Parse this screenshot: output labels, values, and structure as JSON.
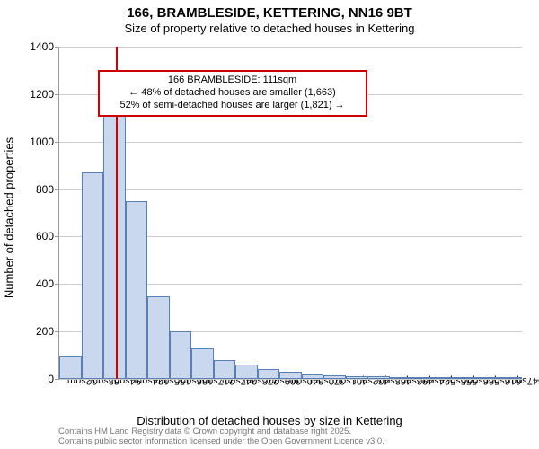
{
  "title": "166, BRAMBLESIDE, KETTERING, NN16 9BT",
  "subtitle": "Size of property relative to detached houses in Kettering",
  "ylabel": "Number of detached properties",
  "xlabel": "Distribution of detached houses by size in Kettering",
  "footer_line1": "Contains HM Land Registry data © Crown copyright and database right 2025.",
  "footer_line2": "Contains public sector information licensed under the Open Government Licence v3.0.",
  "chart": {
    "type": "histogram",
    "ylim": [
      0,
      1400
    ],
    "ytick_step": 200,
    "yticks": [
      0,
      200,
      400,
      600,
      800,
      1000,
      1200,
      1400
    ],
    "xticks": [
      "32sqm",
      "63sqm",
      "94sqm",
      "124sqm",
      "155sqm",
      "186sqm",
      "217sqm",
      "247sqm",
      "278sqm",
      "309sqm",
      "340sqm",
      "370sqm",
      "401sqm",
      "432sqm",
      "463sqm",
      "493sqm",
      "524sqm",
      "555sqm",
      "586sqm",
      "616sqm",
      "647sqm"
    ],
    "values": [
      100,
      870,
      1160,
      750,
      350,
      200,
      130,
      80,
      60,
      40,
      30,
      20,
      15,
      12,
      10,
      8,
      6,
      5,
      3,
      2,
      1
    ],
    "bar_fill": "#c9d8ef",
    "bar_stroke": "#5b7fb5",
    "grid_color": "#cccccc",
    "axis_color": "#999999",
    "background_color": "#ffffff",
    "reference_line_color": "#cc0000",
    "reference_bin_index": 2,
    "reference_fraction_in_bin": 0.55
  },
  "annotation": {
    "line1": "166 BRAMBLESIDE: 111sqm",
    "line2": "← 48% of detached houses are smaller (1,663)",
    "line3": "52% of semi-detached houses are larger (1,821) →"
  }
}
